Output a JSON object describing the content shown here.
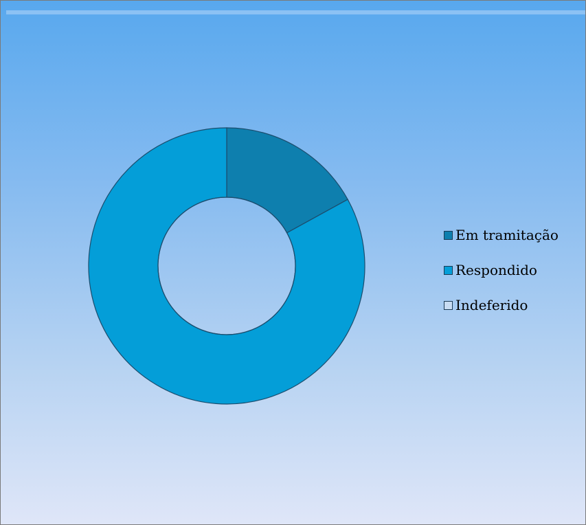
{
  "chart_data": {
    "type": "pie",
    "variant": "donut",
    "title": "",
    "categories": [
      "Em tramitação",
      "Respondido",
      "Indeferido"
    ],
    "values": [
      17,
      83,
      0
    ],
    "colors": [
      "#0e7fae",
      "#049ed8",
      "#b9d6f2"
    ],
    "legend": {
      "position": "right",
      "items": [
        {
          "label": "Em tramitação",
          "color": "#0e7fae"
        },
        {
          "label": "Respondido",
          "color": "#049ed8"
        },
        {
          "label": "Indeferido",
          "color": "#c8dcf3"
        }
      ]
    }
  }
}
